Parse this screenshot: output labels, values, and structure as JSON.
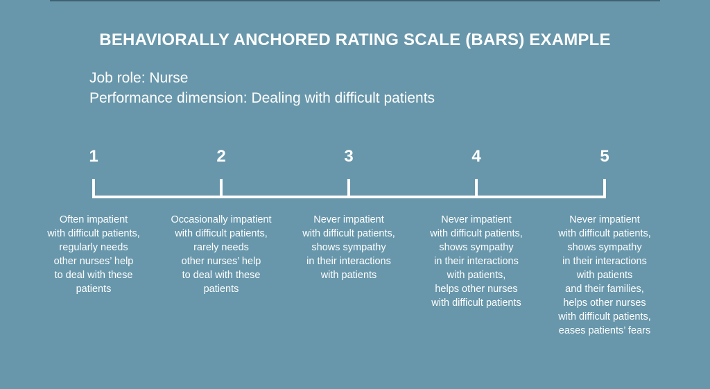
{
  "title": "BEHAVIORALLY ANCHORED RATING SCALE (BARS) EXAMPLE",
  "job_role": "Job role: Nurse",
  "performance_dimension": "Performance dimension: Dealing with difficult patients",
  "colors": {
    "background": "#6897ab",
    "text": "#ffffff",
    "top_rule": "#3f6272"
  },
  "scale": [
    {
      "number": "1",
      "lines": [
        "Often impatient",
        "with difficult patients,",
        "regularly needs",
        "other nurses’ help",
        "to deal with these",
        "patients"
      ]
    },
    {
      "number": "2",
      "lines": [
        "Occasionally impatient",
        "with difficult patients,",
        "rarely needs",
        "other nurses’ help",
        "to deal with these",
        "patients"
      ]
    },
    {
      "number": "3",
      "lines": [
        "Never impatient",
        "with difficult patients,",
        "shows sympathy",
        "in their interactions",
        "with patients"
      ]
    },
    {
      "number": "4",
      "lines": [
        "Never impatient",
        "with difficult patients,",
        "shows sympathy",
        "in their interactions",
        "with patients,",
        "helps other nurses",
        "with difficult patients"
      ]
    },
    {
      "number": "5",
      "lines": [
        "Never impatient",
        "with difficult patients,",
        "shows sympathy",
        "in their interactions",
        "with patients",
        "and their families,",
        "helps other nurses",
        "with difficult patients,",
        "eases patients’ fears"
      ]
    }
  ]
}
